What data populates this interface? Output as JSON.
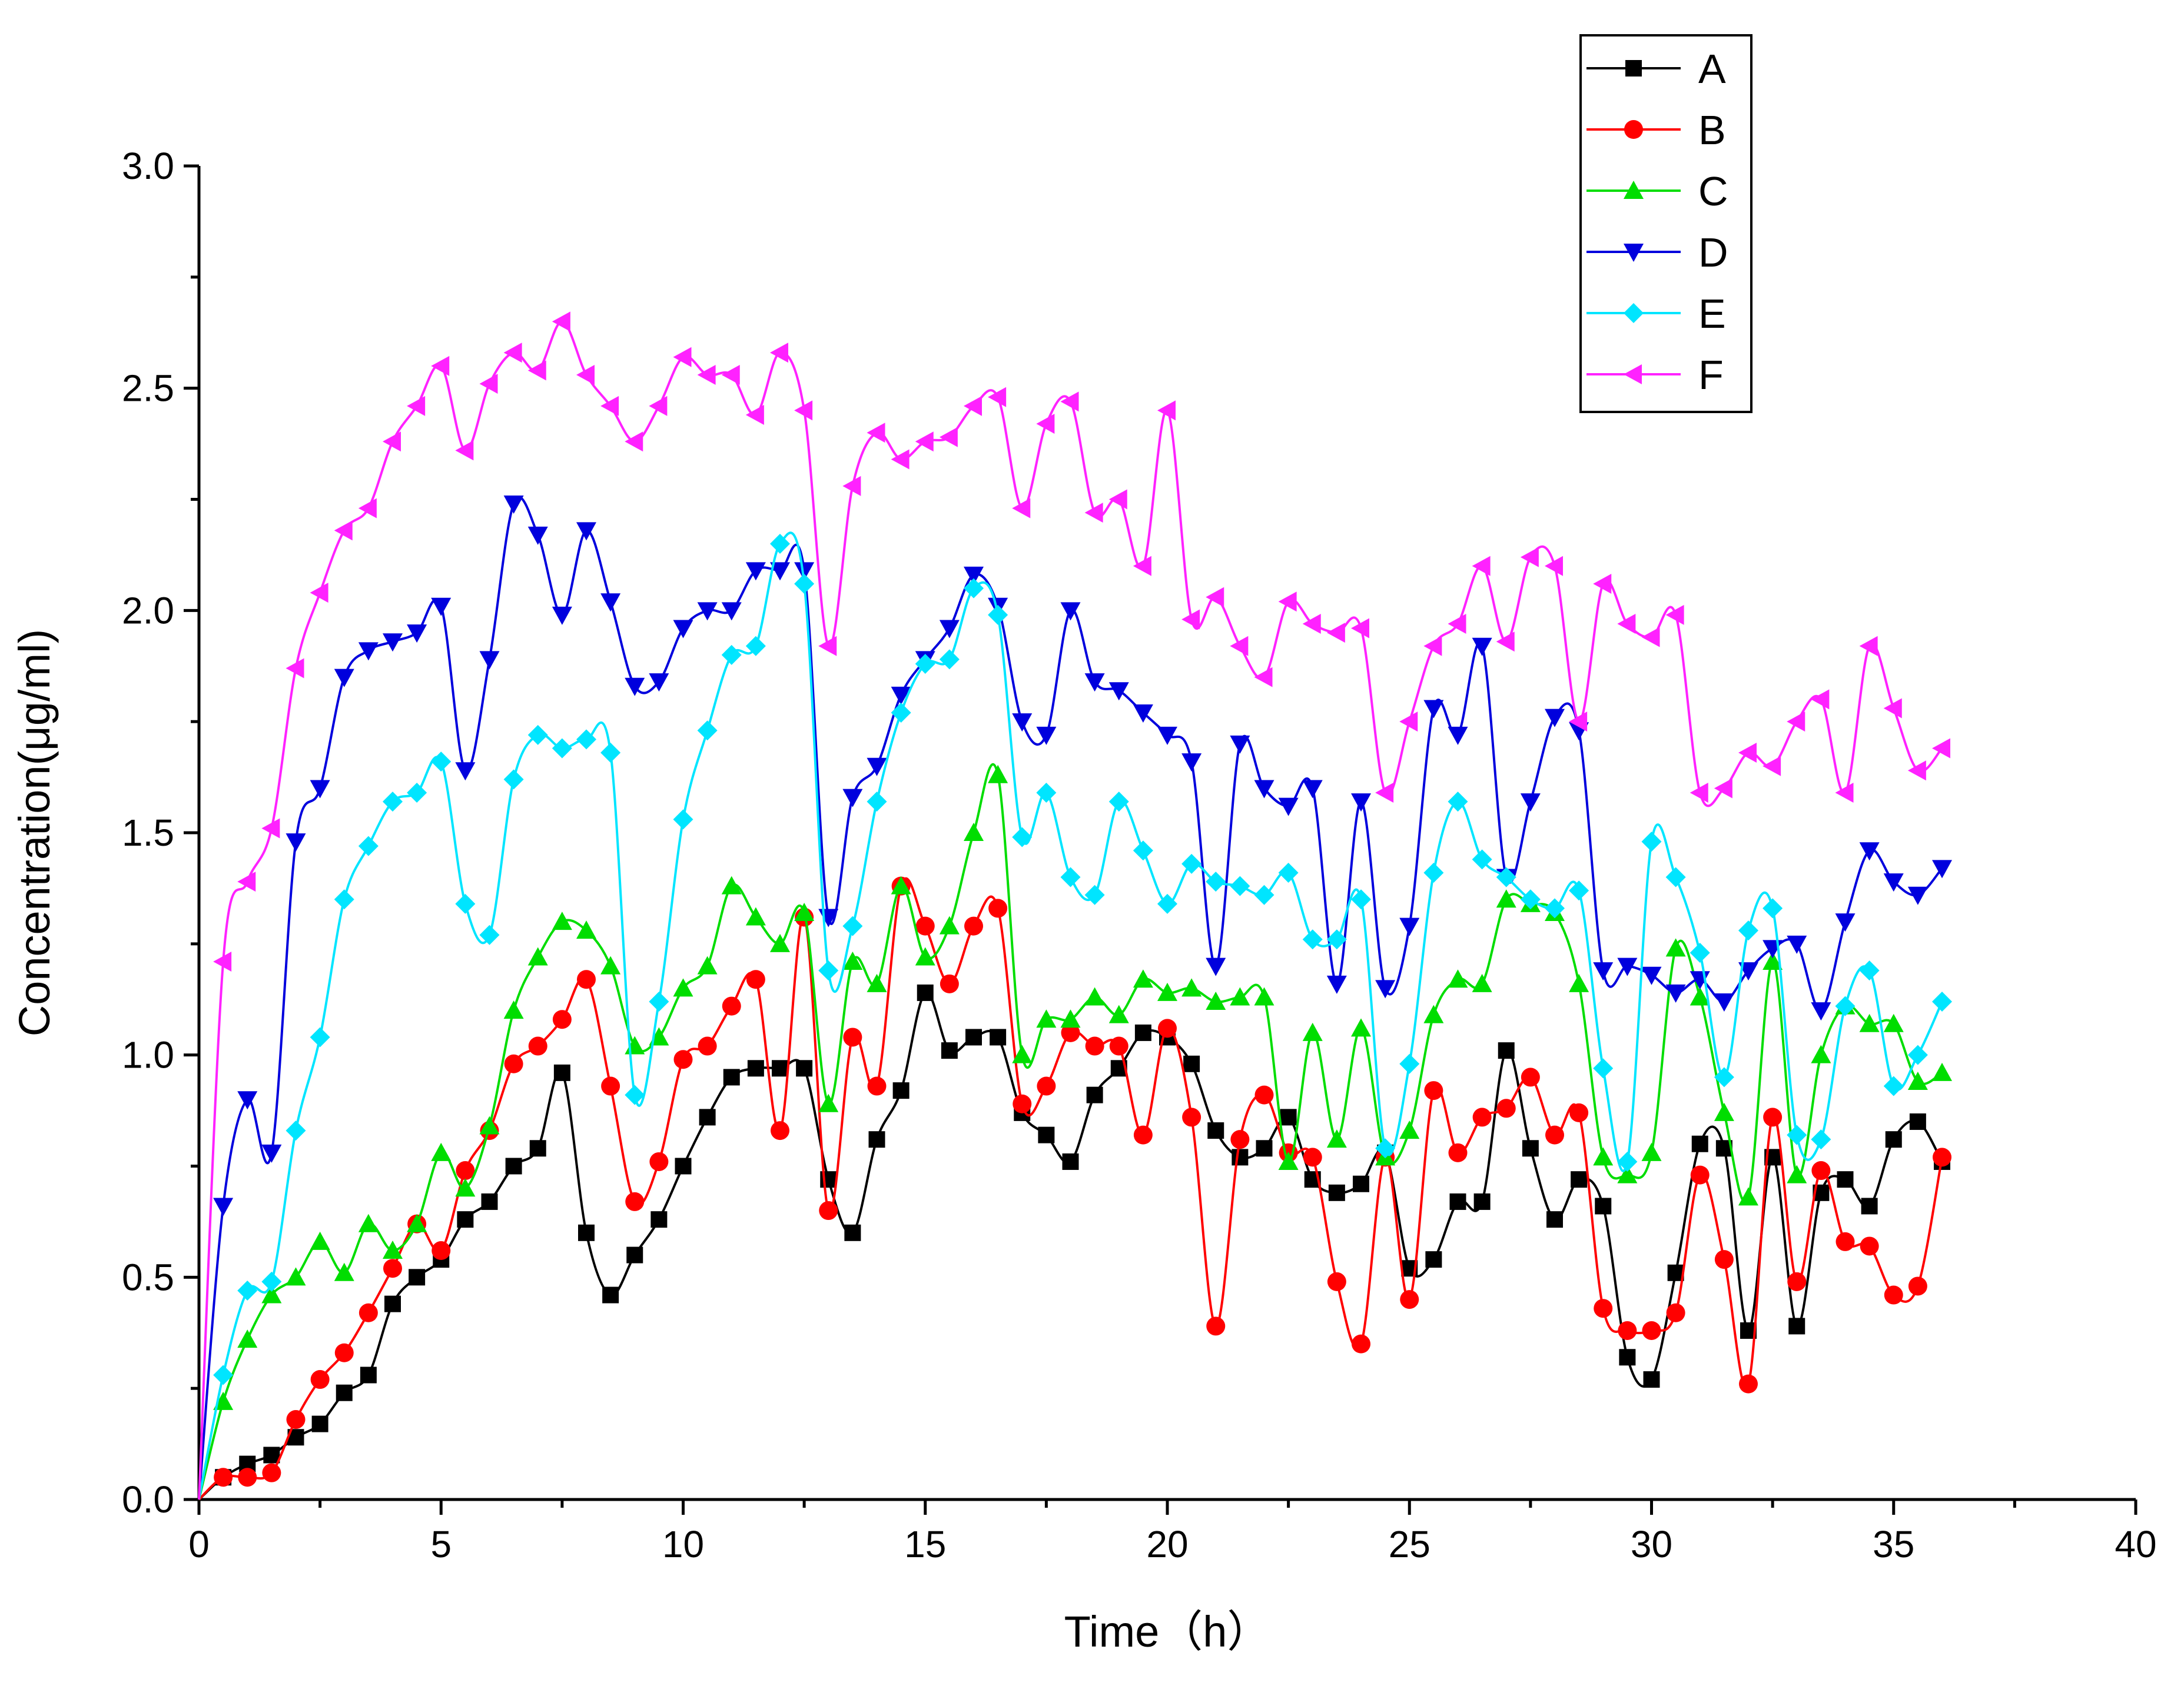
{
  "chart_data": {
    "type": "line",
    "title": "",
    "xlabel": "Time（h）",
    "ylabel": "Concentration(μg/ml)",
    "xlim": [
      0,
      40
    ],
    "ylim": [
      0,
      3.0
    ],
    "xticks": [
      "0",
      "5",
      "10",
      "15",
      "20",
      "25",
      "30",
      "35",
      "40"
    ],
    "yticks": [
      "0.0",
      "0.5",
      "1.0",
      "1.5",
      "2.0",
      "2.5",
      "3.0"
    ],
    "legend_position": "top-right",
    "x": [
      0,
      0.5,
      1,
      1.5,
      2,
      2.5,
      3,
      3.5,
      4,
      4.5,
      5,
      5.5,
      6,
      6.5,
      7,
      7.5,
      8,
      8.5,
      9,
      9.5,
      10,
      10.5,
      11,
      11.5,
      12,
      12.5,
      13,
      13.5,
      14,
      14.5,
      15,
      15.5,
      16,
      16.5,
      17,
      17.5,
      18,
      18.5,
      19,
      19.5,
      20,
      20.5,
      21,
      21.5,
      22,
      22.5,
      23,
      23.5,
      24,
      24.5,
      25,
      25.5,
      26,
      26.5,
      27,
      27.5,
      28,
      28.5,
      29,
      29.5,
      30,
      30.5,
      31,
      31.5,
      32,
      32.5,
      33,
      33.5,
      34,
      34.5,
      35,
      35.5,
      36
    ],
    "series": [
      {
        "name": "A",
        "color": "#000000",
        "marker": "square",
        "values": [
          0,
          0.05,
          0.08,
          0.1,
          0.14,
          0.17,
          0.24,
          0.28,
          0.44,
          0.5,
          0.54,
          0.63,
          0.67,
          0.75,
          0.79,
          0.96,
          0.6,
          0.46,
          0.55,
          0.63,
          0.75,
          0.86,
          0.95,
          0.97,
          0.97,
          0.97,
          0.72,
          0.6,
          0.81,
          0.92,
          1.14,
          1.01,
          1.04,
          1.04,
          0.87,
          0.82,
          0.76,
          0.91,
          0.97,
          1.05,
          1.04,
          0.98,
          0.83,
          0.77,
          0.79,
          0.86,
          0.72,
          0.69,
          0.71,
          0.78,
          0.52,
          0.54,
          0.67,
          0.67,
          1.01,
          0.79,
          0.63,
          0.72,
          0.66,
          0.32,
          0.27,
          0.51,
          0.8,
          0.79,
          0.38,
          0.77,
          0.39,
          0.69,
          0.72,
          0.66,
          0.81,
          0.85,
          0.76
        ]
      },
      {
        "name": "B",
        "color": "#ff0000",
        "marker": "circle",
        "values": [
          0,
          0.05,
          0.05,
          0.06,
          0.18,
          0.27,
          0.33,
          0.42,
          0.52,
          0.62,
          0.56,
          0.74,
          0.83,
          0.98,
          1.02,
          1.08,
          1.17,
          0.93,
          0.67,
          0.76,
          0.99,
          1.02,
          1.11,
          1.17,
          0.83,
          1.31,
          0.65,
          1.04,
          0.93,
          1.38,
          1.29,
          1.16,
          1.29,
          1.33,
          0.89,
          0.93,
          1.05,
          1.02,
          1.02,
          0.82,
          1.06,
          0.86,
          0.39,
          0.81,
          0.91,
          0.78,
          0.77,
          0.49,
          0.35,
          0.77,
          0.45,
          0.92,
          0.78,
          0.86,
          0.88,
          0.95,
          0.82,
          0.87,
          0.43,
          0.38,
          0.38,
          0.42,
          0.73,
          0.54,
          0.26,
          0.86,
          0.49,
          0.74,
          0.58,
          0.57,
          0.46,
          0.48,
          0.77
        ]
      },
      {
        "name": "C",
        "color": "#00dd00",
        "marker": "triangle-up",
        "values": [
          0,
          0.22,
          0.36,
          0.46,
          0.5,
          0.58,
          0.51,
          0.62,
          0.56,
          0.62,
          0.78,
          0.7,
          0.84,
          1.1,
          1.22,
          1.3,
          1.28,
          1.2,
          1.02,
          1.04,
          1.15,
          1.2,
          1.38,
          1.31,
          1.25,
          1.32,
          0.89,
          1.21,
          1.16,
          1.38,
          1.22,
          1.29,
          1.5,
          1.63,
          1.0,
          1.08,
          1.08,
          1.13,
          1.09,
          1.17,
          1.14,
          1.15,
          1.12,
          1.13,
          1.13,
          0.76,
          1.05,
          0.81,
          1.06,
          0.77,
          0.83,
          1.09,
          1.17,
          1.16,
          1.35,
          1.34,
          1.32,
          1.16,
          0.77,
          0.73,
          0.78,
          1.24,
          1.13,
          0.87,
          0.68,
          1.21,
          0.73,
          1.0,
          1.11,
          1.07,
          1.07,
          0.94,
          0.96
        ]
      },
      {
        "name": "D",
        "color": "#0000dd",
        "marker": "triangle-down",
        "values": [
          0,
          0.66,
          0.9,
          0.78,
          1.48,
          1.6,
          1.85,
          1.91,
          1.93,
          1.95,
          2.01,
          1.64,
          1.89,
          2.24,
          2.17,
          1.99,
          2.18,
          2.02,
          1.83,
          1.84,
          1.96,
          2.0,
          2.0,
          2.09,
          2.09,
          2.09,
          1.31,
          1.58,
          1.65,
          1.81,
          1.89,
          1.96,
          2.08,
          2.01,
          1.75,
          1.72,
          2.0,
          1.84,
          1.82,
          1.77,
          1.72,
          1.66,
          1.2,
          1.7,
          1.6,
          1.56,
          1.6,
          1.16,
          1.57,
          1.15,
          1.29,
          1.78,
          1.72,
          1.92,
          1.4,
          1.57,
          1.76,
          1.73,
          1.19,
          1.2,
          1.18,
          1.14,
          1.17,
          1.12,
          1.19,
          1.24,
          1.25,
          1.1,
          1.3,
          1.46,
          1.39,
          1.36,
          1.42
        ]
      },
      {
        "name": "E",
        "color": "#00e5ff",
        "marker": "diamond",
        "values": [
          0,
          0.28,
          0.47,
          0.49,
          0.83,
          1.04,
          1.35,
          1.47,
          1.57,
          1.59,
          1.66,
          1.34,
          1.27,
          1.62,
          1.72,
          1.69,
          1.71,
          1.68,
          0.91,
          1.12,
          1.53,
          1.73,
          1.9,
          1.92,
          2.15,
          2.06,
          1.19,
          1.29,
          1.57,
          1.77,
          1.88,
          1.89,
          2.05,
          1.99,
          1.49,
          1.59,
          1.4,
          1.36,
          1.57,
          1.46,
          1.34,
          1.43,
          1.39,
          1.38,
          1.36,
          1.41,
          1.26,
          1.26,
          1.35,
          0.79,
          0.98,
          1.41,
          1.57,
          1.44,
          1.4,
          1.35,
          1.33,
          1.37,
          0.97,
          0.76,
          1.48,
          1.4,
          1.23,
          0.95,
          1.28,
          1.33,
          0.82,
          0.81,
          1.11,
          1.19,
          0.93,
          1.0,
          1.12
        ]
      },
      {
        "name": "F",
        "color": "#ff22ff",
        "marker": "triangle-left",
        "values": [
          0,
          1.21,
          1.39,
          1.51,
          1.87,
          2.04,
          2.18,
          2.23,
          2.38,
          2.46,
          2.55,
          2.36,
          2.51,
          2.58,
          2.54,
          2.65,
          2.53,
          2.46,
          2.38,
          2.46,
          2.57,
          2.53,
          2.53,
          2.44,
          2.58,
          2.45,
          1.92,
          2.28,
          2.4,
          2.34,
          2.38,
          2.39,
          2.46,
          2.48,
          2.23,
          2.42,
          2.47,
          2.22,
          2.25,
          2.1,
          2.45,
          1.98,
          2.03,
          1.92,
          1.85,
          2.02,
          1.97,
          1.95,
          1.96,
          1.59,
          1.75,
          1.92,
          1.97,
          2.1,
          1.93,
          2.12,
          2.1,
          1.75,
          2.06,
          1.97,
          1.94,
          1.99,
          1.59,
          1.6,
          1.68,
          1.65,
          1.75,
          1.8,
          1.59,
          1.92,
          1.78,
          1.64,
          1.69
        ]
      }
    ]
  }
}
